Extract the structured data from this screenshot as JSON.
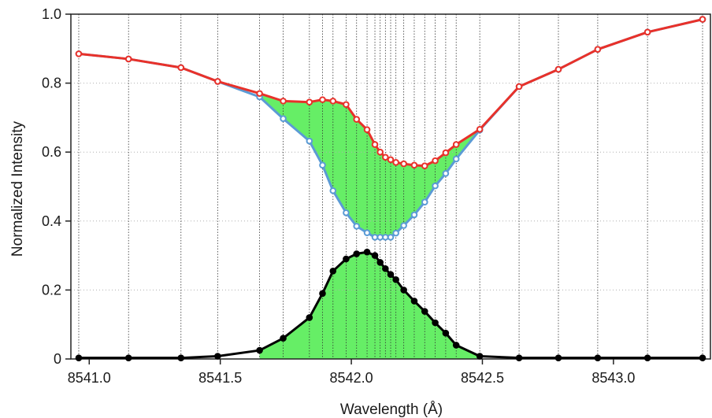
{
  "chart_data": {
    "type": "line",
    "title": "",
    "xlabel": "Wavelength (Å)",
    "ylabel": "Normalized Intensity",
    "xlim": [
      8540.93,
      8543.37
    ],
    "ylim": [
      0,
      1.0
    ],
    "x_ticks": [
      8541.0,
      8541.5,
      8542.0,
      8542.5,
      8543.0
    ],
    "x_tick_labels": [
      "8541.0",
      "8541.5",
      "8542.0",
      "8542.5",
      "8543.0"
    ],
    "y_ticks": [
      0,
      0.2,
      0.4,
      0.6,
      0.8,
      1.0
    ],
    "y_tick_labels": [
      "0",
      "0.2",
      "0.4",
      "0.6",
      "0.8",
      "1.0"
    ],
    "grid": "vertical dotted lines at each sampled wavelength; horizontal dotted gridlines at y ticks",
    "x": [
      8540.96,
      8541.15,
      8541.35,
      8541.49,
      8541.65,
      8541.74,
      8541.84,
      8541.89,
      8541.93,
      8541.98,
      8542.02,
      8542.06,
      8542.09,
      8542.11,
      8542.13,
      8542.15,
      8542.17,
      8542.2,
      8542.24,
      8542.28,
      8542.32,
      8542.36,
      8542.4,
      8542.49,
      8542.64,
      8542.79,
      8542.94,
      8543.13,
      8543.34
    ],
    "series": [
      {
        "values": [
          0.885,
          0.87,
          0.845,
          0.805,
          0.76,
          0.697,
          0.632,
          0.562,
          0.488,
          0.424,
          0.385,
          0.366,
          0.353,
          0.353,
          0.353,
          0.353,
          0.365,
          0.387,
          0.418,
          0.455,
          0.502,
          0.538,
          0.58,
          0.664,
          0.79,
          0.84,
          0.898,
          0.948,
          0.985
        ],
        "color": "#5b9bd5"
      },
      {
        "values": [
          0.885,
          0.87,
          0.845,
          0.805,
          0.77,
          0.748,
          0.745,
          0.752,
          0.748,
          0.738,
          0.695,
          0.665,
          0.622,
          0.6,
          0.585,
          0.578,
          0.57,
          0.566,
          0.562,
          0.56,
          0.575,
          0.598,
          0.622,
          0.666,
          0.79,
          0.84,
          0.898,
          0.948,
          0.985
        ],
        "color": "#e8312a"
      },
      {
        "values": [
          0.003,
          0.003,
          0.003,
          0.008,
          0.025,
          0.06,
          0.12,
          0.19,
          0.255,
          0.29,
          0.305,
          0.31,
          0.3,
          0.28,
          0.262,
          0.245,
          0.23,
          0.2,
          0.168,
          0.138,
          0.105,
          0.075,
          0.04,
          0.008,
          0.003,
          0.003,
          0.003,
          0.003,
          0.003
        ],
        "color": "#000000"
      }
    ],
    "fill_between": {
      "lower_series": 0,
      "upper_series": 1,
      "baseline_to_series": 2,
      "color": "#66ee66"
    }
  }
}
